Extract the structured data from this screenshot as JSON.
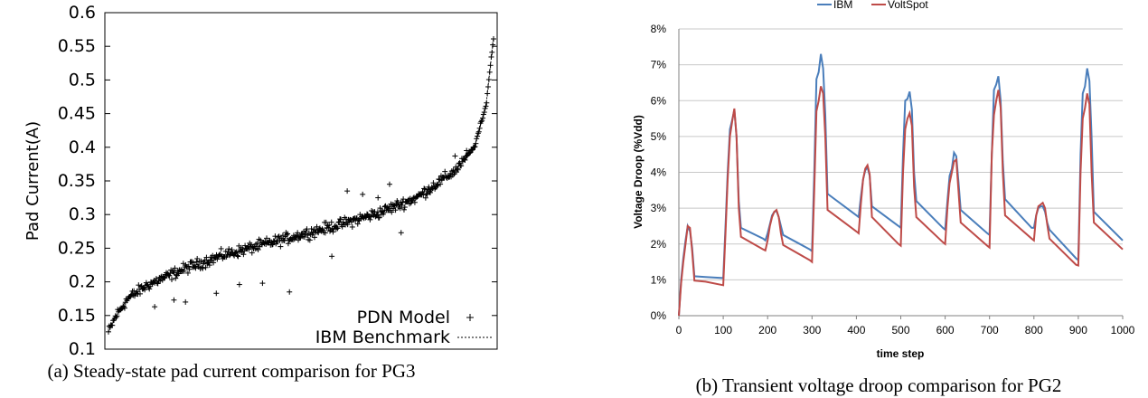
{
  "captions": {
    "a": "(a) Steady-state pad current comparison for PG3",
    "b": "(b) Transient voltage droop comparison for PG2"
  },
  "chart_data": [
    {
      "type": "scatter",
      "title": "",
      "xlabel": "",
      "ylabel": "Pad Current(A)",
      "ylim": [
        0.1,
        0.6
      ],
      "yticks": [
        "0.1",
        "0.15",
        "0.2",
        "0.25",
        "0.3",
        "0.35",
        "0.4",
        "0.45",
        "0.5",
        "0.55",
        "0.6"
      ],
      "xticks_shown": false,
      "legend_position": "bottom-right",
      "series": [
        {
          "name": "PDN Model",
          "marker": "plus",
          "color": "#000000",
          "count": 500,
          "curve_shape": [
            [
              0,
              0.125
            ],
            [
              0.02,
              0.15
            ],
            [
              0.05,
              0.175
            ],
            [
              0.1,
              0.195
            ],
            [
              0.2,
              0.22
            ],
            [
              0.3,
              0.24
            ],
            [
              0.4,
              0.255
            ],
            [
              0.5,
              0.27
            ],
            [
              0.6,
              0.285
            ],
            [
              0.7,
              0.302
            ],
            [
              0.8,
              0.325
            ],
            [
              0.9,
              0.365
            ],
            [
              0.95,
              0.4
            ],
            [
              0.98,
              0.46
            ],
            [
              1.0,
              0.563
            ]
          ],
          "scatter_spread": 0.012,
          "outliers": [
            [
              0.12,
              0.163
            ],
            [
              0.17,
              0.173
            ],
            [
              0.2,
              0.17
            ],
            [
              0.28,
              0.183
            ],
            [
              0.34,
              0.196
            ],
            [
              0.4,
              0.198
            ],
            [
              0.47,
              0.185
            ],
            [
              0.58,
              0.238
            ],
            [
              0.62,
              0.335
            ],
            [
              0.66,
              0.33
            ],
            [
              0.7,
              0.325
            ],
            [
              0.73,
              0.345
            ],
            [
              0.76,
              0.273
            ],
            [
              0.83,
              0.337
            ],
            [
              0.9,
              0.387
            ],
            [
              0.93,
              0.395
            ]
          ]
        },
        {
          "name": "IBM Benchmark",
          "style": "dotted-line",
          "color": "#000000",
          "values_same_curve_as": "PDN Model"
        }
      ]
    },
    {
      "type": "line",
      "title": "",
      "xlabel": "time step",
      "ylabel": "Voltage Droop (%Vdd)",
      "xlim": [
        0,
        1000
      ],
      "ylim": [
        0,
        8
      ],
      "xticks": [
        "0",
        "100",
        "200",
        "300",
        "400",
        "500",
        "600",
        "700",
        "800",
        "900",
        "1000"
      ],
      "yticks": [
        "0%",
        "1%",
        "2%",
        "3%",
        "4%",
        "5%",
        "6%",
        "7%",
        "8%"
      ],
      "grid": "horizontal",
      "legend_position": "top",
      "series": [
        {
          "name": "IBM",
          "color": "#4a7ebb",
          "points": [
            [
              0,
              0
            ],
            [
              5,
              1.0
            ],
            [
              10,
              1.6
            ],
            [
              15,
              2.1
            ],
            [
              20,
              2.5
            ],
            [
              25,
              2.35
            ],
            [
              30,
              1.9
            ],
            [
              35,
              1.1
            ],
            [
              60,
              1.08
            ],
            [
              100,
              1.05
            ],
            [
              105,
              2.5
            ],
            [
              110,
              4.0
            ],
            [
              115,
              5.2
            ],
            [
              120,
              5.45
            ],
            [
              125,
              5.75
            ],
            [
              130,
              5.0
            ],
            [
              135,
              3.2
            ],
            [
              140,
              2.45
            ],
            [
              190,
              2.15
            ],
            [
              195,
              2.1
            ],
            [
              200,
              2.3
            ],
            [
              205,
              2.55
            ],
            [
              210,
              2.8
            ],
            [
              215,
              2.9
            ],
            [
              220,
              2.92
            ],
            [
              225,
              2.75
            ],
            [
              230,
              2.5
            ],
            [
              235,
              2.25
            ],
            [
              295,
              1.85
            ],
            [
              300,
              1.8
            ],
            [
              305,
              4.0
            ],
            [
              310,
              6.6
            ],
            [
              315,
              6.8
            ],
            [
              320,
              7.3
            ],
            [
              325,
              6.9
            ],
            [
              330,
              5.6
            ],
            [
              335,
              3.4
            ],
            [
              400,
              2.8
            ],
            [
              405,
              2.75
            ],
            [
              410,
              3.3
            ],
            [
              415,
              3.8
            ],
            [
              420,
              4.05
            ],
            [
              425,
              4.15
            ],
            [
              430,
              3.9
            ],
            [
              435,
              3.05
            ],
            [
              495,
              2.5
            ],
            [
              500,
              2.45
            ],
            [
              505,
              4.5
            ],
            [
              510,
              6.0
            ],
            [
              515,
              6.05
            ],
            [
              520,
              6.25
            ],
            [
              525,
              5.75
            ],
            [
              530,
              4.0
            ],
            [
              535,
              3.2
            ],
            [
              595,
              2.45
            ],
            [
              600,
              2.4
            ],
            [
              605,
              3.2
            ],
            [
              610,
              3.9
            ],
            [
              615,
              4.1
            ],
            [
              620,
              4.55
            ],
            [
              625,
              4.45
            ],
            [
              630,
              3.75
            ],
            [
              635,
              2.95
            ],
            [
              695,
              2.3
            ],
            [
              700,
              2.25
            ],
            [
              705,
              4.5
            ],
            [
              710,
              6.3
            ],
            [
              715,
              6.45
            ],
            [
              720,
              6.68
            ],
            [
              725,
              6.0
            ],
            [
              730,
              4.3
            ],
            [
              735,
              3.25
            ],
            [
              795,
              2.45
            ],
            [
              800,
              2.45
            ],
            [
              805,
              2.8
            ],
            [
              810,
              3.0
            ],
            [
              815,
              3.05
            ],
            [
              820,
              3.05
            ],
            [
              825,
              2.9
            ],
            [
              830,
              2.6
            ],
            [
              835,
              2.4
            ],
            [
              895,
              1.6
            ],
            [
              900,
              1.55
            ],
            [
              905,
              4.5
            ],
            [
              910,
              6.2
            ],
            [
              915,
              6.4
            ],
            [
              920,
              6.9
            ],
            [
              925,
              6.55
            ],
            [
              930,
              5.0
            ],
            [
              935,
              2.9
            ],
            [
              1000,
              2.1
            ]
          ]
        },
        {
          "name": "VoltSpot",
          "color": "#be4b48",
          "points": [
            [
              0,
              0
            ],
            [
              5,
              0.9
            ],
            [
              10,
              1.5
            ],
            [
              15,
              2.0
            ],
            [
              20,
              2.5
            ],
            [
              25,
              2.45
            ],
            [
              30,
              1.8
            ],
            [
              35,
              0.98
            ],
            [
              60,
              0.95
            ],
            [
              100,
              0.85
            ],
            [
              105,
              2.3
            ],
            [
              110,
              3.8
            ],
            [
              115,
              5.0
            ],
            [
              120,
              5.4
            ],
            [
              125,
              5.78
            ],
            [
              130,
              5.0
            ],
            [
              135,
              3.0
            ],
            [
              140,
              2.2
            ],
            [
              190,
              1.85
            ],
            [
              195,
              1.82
            ],
            [
              200,
              2.1
            ],
            [
              205,
              2.5
            ],
            [
              210,
              2.75
            ],
            [
              215,
              2.9
            ],
            [
              220,
              2.95
            ],
            [
              225,
              2.75
            ],
            [
              230,
              2.3
            ],
            [
              235,
              1.97
            ],
            [
              295,
              1.55
            ],
            [
              300,
              1.5
            ],
            [
              305,
              3.5
            ],
            [
              310,
              5.7
            ],
            [
              315,
              6.0
            ],
            [
              320,
              6.4
            ],
            [
              325,
              6.2
            ],
            [
              330,
              5.0
            ],
            [
              335,
              2.95
            ],
            [
              400,
              2.35
            ],
            [
              405,
              2.3
            ],
            [
              410,
              3.1
            ],
            [
              415,
              3.8
            ],
            [
              420,
              4.1
            ],
            [
              425,
              4.2
            ],
            [
              430,
              3.95
            ],
            [
              435,
              2.75
            ],
            [
              495,
              2.0
            ],
            [
              500,
              1.95
            ],
            [
              505,
              4.0
            ],
            [
              510,
              5.2
            ],
            [
              515,
              5.5
            ],
            [
              520,
              5.65
            ],
            [
              525,
              5.3
            ],
            [
              530,
              3.6
            ],
            [
              535,
              2.75
            ],
            [
              595,
              2.05
            ],
            [
              600,
              2.0
            ],
            [
              605,
              3.0
            ],
            [
              610,
              3.7
            ],
            [
              615,
              4.0
            ],
            [
              620,
              4.3
            ],
            [
              625,
              4.35
            ],
            [
              630,
              3.5
            ],
            [
              635,
              2.6
            ],
            [
              695,
              1.95
            ],
            [
              700,
              1.9
            ],
            [
              705,
              4.5
            ],
            [
              710,
              5.6
            ],
            [
              715,
              6.0
            ],
            [
              720,
              6.3
            ],
            [
              725,
              5.8
            ],
            [
              730,
              4.0
            ],
            [
              735,
              2.8
            ],
            [
              795,
              2.15
            ],
            [
              800,
              2.1
            ],
            [
              805,
              2.8
            ],
            [
              810,
              3.05
            ],
            [
              815,
              3.1
            ],
            [
              820,
              3.15
            ],
            [
              825,
              3.0
            ],
            [
              830,
              2.55
            ],
            [
              835,
              2.15
            ],
            [
              895,
              1.42
            ],
            [
              900,
              1.4
            ],
            [
              905,
              4.0
            ],
            [
              910,
              5.5
            ],
            [
              915,
              5.8
            ],
            [
              920,
              6.2
            ],
            [
              925,
              5.9
            ],
            [
              930,
              4.0
            ],
            [
              935,
              2.6
            ],
            [
              1000,
              1.85
            ]
          ]
        }
      ]
    }
  ]
}
